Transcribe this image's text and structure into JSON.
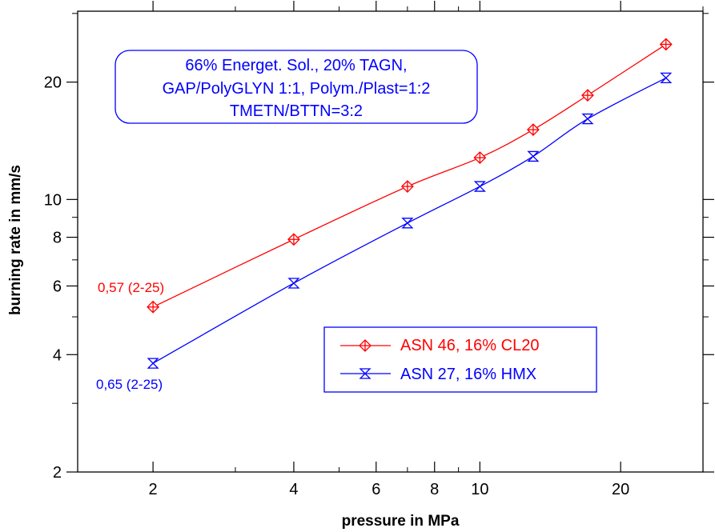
{
  "chart_data": {
    "type": "line",
    "xlabel": "pressure in MPa",
    "ylabel": "burning rate in mm/s",
    "xscale": "log",
    "yscale": "log",
    "xlim": [
      1.38,
      30
    ],
    "ylim": [
      2,
      30.4
    ],
    "x_ticks": [
      2,
      4,
      6,
      8,
      10,
      20
    ],
    "y_ticks": [
      2,
      4,
      6,
      8,
      10,
      20
    ],
    "info_box": {
      "lines": [
        "66% Energet. Sol., 20% TAGN,",
        "GAP/PolyGLYN 1:1, Polym./Plast=1:2",
        "TMETN/BTTN=3:2"
      ],
      "color": "#0000ff"
    },
    "legend_position": "center-right",
    "series": [
      {
        "name": "ASN 46, 16% CL20",
        "color": "#ff0000",
        "marker": "diamond-cross",
        "x": [
          2,
          4,
          7,
          10,
          13,
          17,
          25
        ],
        "y": [
          5.3,
          7.9,
          10.8,
          12.8,
          15.1,
          18.5,
          25.0
        ],
        "annotation": "0,57 (2-25)"
      },
      {
        "name": "ASN 27, 16% HMX",
        "color": "#0000ff",
        "marker": "hourglass",
        "x": [
          2,
          4,
          7,
          10,
          13,
          17,
          25
        ],
        "y": [
          3.8,
          6.1,
          8.7,
          10.8,
          12.9,
          16.1,
          20.5
        ],
        "annotation": "0,65 (2-25)"
      }
    ]
  }
}
